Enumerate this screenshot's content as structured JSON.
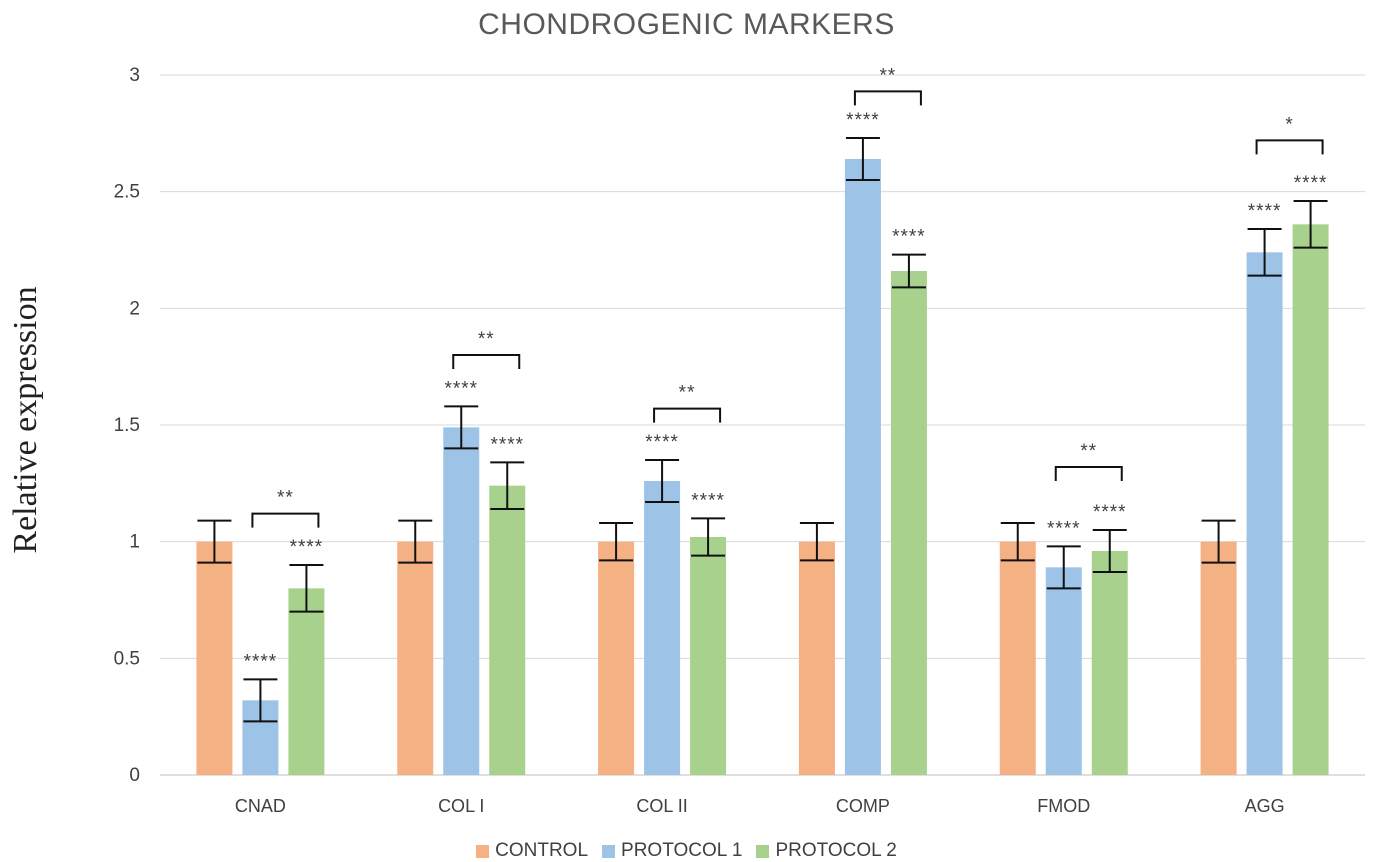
{
  "chart_data": {
    "type": "bar",
    "title": "CHONDROGENIC MARKERS",
    "ylabel": "Relative expression",
    "xlabel": "",
    "ylim": [
      0,
      3
    ],
    "yticks": [
      "0",
      "0.5",
      "1",
      "1.5",
      "2",
      "2.5",
      "3"
    ],
    "categories": [
      "CNAD",
      "COL I",
      "COL II",
      "COMP",
      "FMOD",
      "AGG"
    ],
    "series": [
      {
        "name": "CONTROL",
        "color": "#f4b183",
        "values": [
          1.0,
          1.0,
          1.0,
          1.0,
          1.0,
          1.0
        ],
        "errors": [
          0.09,
          0.09,
          0.08,
          0.08,
          0.08,
          0.09
        ],
        "labels": [
          "",
          "",
          "",
          "",
          "",
          ""
        ]
      },
      {
        "name": "PROTOCOL 1",
        "color": "#9dc3e6",
        "values": [
          0.32,
          1.49,
          1.26,
          2.64,
          0.89,
          2.24
        ],
        "errors": [
          0.09,
          0.09,
          0.09,
          0.09,
          0.09,
          0.1
        ],
        "labels": [
          "****",
          "****",
          "****",
          "****",
          "****",
          "****"
        ]
      },
      {
        "name": "PROTOCOL 2",
        "color": "#a9d18e",
        "values": [
          0.8,
          1.24,
          1.02,
          2.16,
          0.96,
          2.36
        ],
        "errors": [
          0.1,
          0.1,
          0.08,
          0.07,
          0.09,
          0.1
        ],
        "labels": [
          "****",
          "****",
          "****",
          "****",
          "****",
          "****"
        ]
      }
    ],
    "brackets": [
      {
        "category": "CNAD",
        "y": 1.12,
        "label": "**"
      },
      {
        "category": "COL I",
        "y": 1.8,
        "label": "**"
      },
      {
        "category": "COL II",
        "y": 1.57,
        "label": "**"
      },
      {
        "category": "COMP",
        "y": 2.93,
        "label": "**"
      },
      {
        "category": "FMOD",
        "y": 1.32,
        "label": "**"
      },
      {
        "category": "AGG",
        "y": 2.72,
        "label": "*"
      }
    ],
    "grid": true,
    "legend_position": "bottom"
  }
}
